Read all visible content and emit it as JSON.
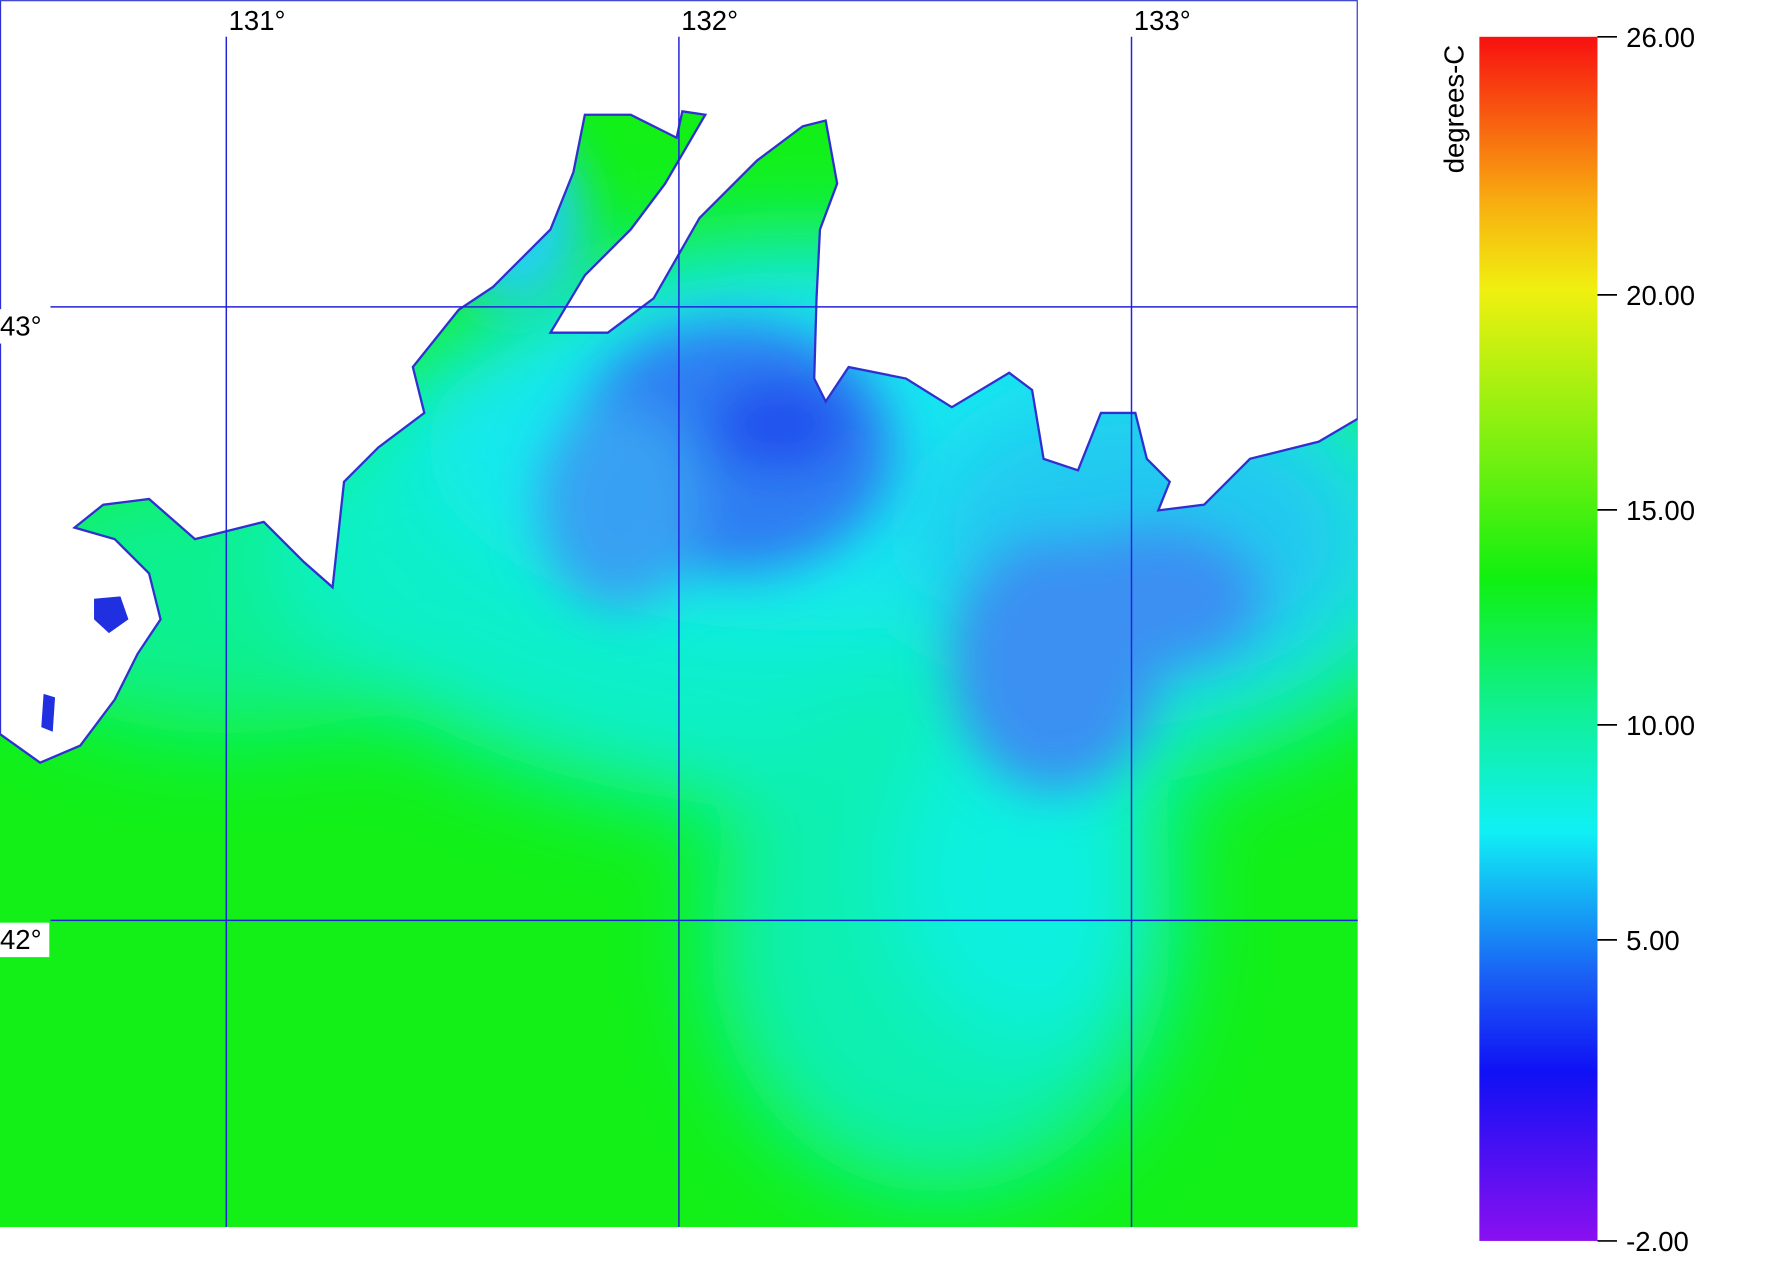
{
  "map": {
    "lonlim": [
      130.5,
      133.5
    ],
    "latlim": [
      41.5,
      43.5
    ],
    "lon_ticks": [
      {
        "value": 131,
        "label": "131°"
      },
      {
        "value": 132,
        "label": "132°"
      },
      {
        "value": 133,
        "label": "133°"
      }
    ],
    "lat_ticks": [
      {
        "value": 43,
        "label": "43°"
      },
      {
        "value": 42,
        "label": "42°"
      }
    ],
    "grid_color": "#2323d8"
  },
  "colorbar": {
    "label": "degrees-C",
    "lim": [
      -2,
      26
    ],
    "ticks": [
      {
        "value": 26,
        "label": "26.00"
      },
      {
        "value": 20,
        "label": "20.00"
      },
      {
        "value": 15,
        "label": "15.00"
      },
      {
        "value": 10,
        "label": "10.00"
      },
      {
        "value": 5,
        "label": "5.00"
      },
      {
        "value": -2,
        "label": "-2.00"
      }
    ]
  }
}
